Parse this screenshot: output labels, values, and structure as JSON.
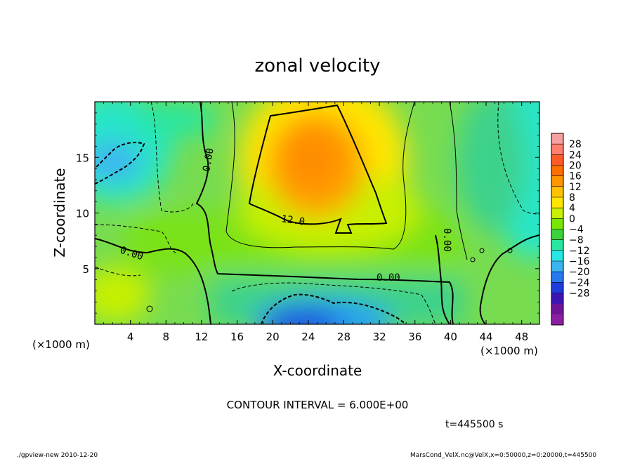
{
  "chart_data": {
    "type": "heatmap",
    "title": "zonal velocity",
    "xlabel": "X-coordinate",
    "ylabel": "Z-coordinate",
    "x_unit": "(×1000 m)",
    "y_unit": "(×1000 m)",
    "xlim": [
      0,
      50
    ],
    "ylim": [
      0,
      20
    ],
    "x_ticks": [
      4,
      8,
      12,
      16,
      20,
      24,
      28,
      32,
      36,
      40,
      44,
      48
    ],
    "y_ticks": [
      5,
      10,
      15
    ],
    "colorbar": {
      "labels": [
        28,
        24,
        20,
        16,
        12,
        8,
        4,
        0,
        -4,
        -8,
        -12,
        -16,
        -20,
        -24,
        -28
      ],
      "colors": [
        "#f7a0a0",
        "#ff7f6e",
        "#ff5a28",
        "#ff6e00",
        "#ff9600",
        "#ffc300",
        "#ffe600",
        "#c8f000",
        "#7ae600",
        "#3cd23c",
        "#28e6a0",
        "#28e6e6",
        "#3cb4f0",
        "#2878f0",
        "#1e3cdc",
        "#3c14b4",
        "#6e1496",
        "#8c1ea0"
      ]
    },
    "contour_interval": "CONTOUR INTERVAL = 6.000E+00",
    "contour_labels": [
      "0.00",
      "0.00",
      "12.0",
      "0.00",
      "0.00"
    ],
    "field_description": [
      {
        "region": "upper center (x 18-33, z 8-20)",
        "value_range": [
          12,
          18
        ]
      },
      {
        "region": "bottom center (x 18-34, z 0-3)",
        "value_range": [
          -20,
          -12
        ]
      },
      {
        "region": "upper left (x 0-6, z 12-17)",
        "value_range": [
          -12,
          -6
        ]
      },
      {
        "region": "right edge (x 46-50, z 8-20)",
        "value_range": [
          -10,
          -4
        ]
      },
      {
        "region": "elsewhere",
        "value_range": [
          -2,
          8
        ]
      }
    ]
  },
  "annotations": {
    "time": "t=445500 s",
    "footer_left": "./gpview-new  2010-12-20",
    "footer_right": "MarsCond_VelX.nc@VelX,x=0:50000,z=0:20000,t=445500"
  }
}
